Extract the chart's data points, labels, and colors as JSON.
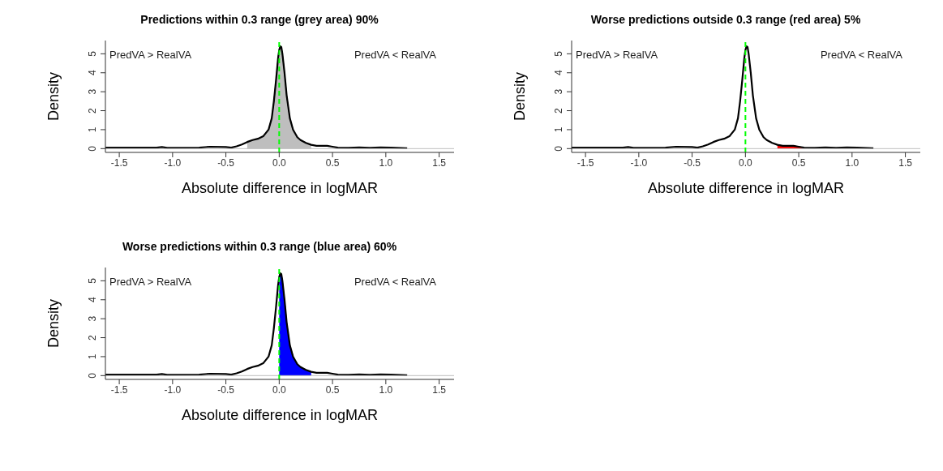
{
  "chart_data": [
    {
      "type": "line",
      "title": "Predictions within 0.3 range (grey area) 90%",
      "xlabel": "Absolute difference in logMAR",
      "ylabel": "Density",
      "xlim": [
        -1.63,
        1.64
      ],
      "ylim": [
        -0.2,
        5.7
      ],
      "xticks": [
        -1.5,
        {
          "value": -1,
          "label": "-1.0"
        },
        -0.5,
        {
          "value": 0,
          "label": "0.0"
        },
        0.5,
        {
          "value": 1,
          "label": "1.0"
        },
        1.5
      ],
      "yticks": [
        0,
        1,
        2,
        3,
        4,
        5
      ],
      "annotations": [
        "PredVA > RealVA",
        "PredVA < RealVA"
      ],
      "ref_lines": [
        {
          "axis": "y",
          "value": 0,
          "color": "#bebebe",
          "line_style": "solid"
        },
        {
          "axis": "x",
          "value": 0,
          "color": "#00ff00",
          "line_style": "dashed"
        }
      ],
      "series": [
        {
          "type": "area",
          "color": "#bebebe",
          "x": [
            -0.3,
            -0.25,
            -0.2,
            -0.15,
            -0.1,
            -0.07,
            -0.05,
            -0.03,
            -0.01,
            0,
            0.01,
            0.02,
            0.03,
            0.05,
            0.07,
            0.1,
            0.13,
            0.17,
            0.2,
            0.25,
            0.3
          ],
          "values": [
            0.35,
            0.45,
            0.52,
            0.65,
            1.0,
            1.6,
            2.5,
            3.6,
            4.8,
            5.2,
            5.4,
            5.35,
            5.0,
            4.0,
            2.8,
            1.6,
            1.0,
            0.6,
            0.45,
            0.3,
            0.2
          ]
        },
        {
          "type": "line",
          "color": "#000000",
          "x": [
            -1.63,
            -1.15,
            -1.1,
            -1.05,
            -0.75,
            -0.65,
            -0.5,
            -0.45,
            -0.4,
            -0.35,
            -0.3,
            -0.25,
            -0.2,
            -0.15,
            -0.1,
            -0.07,
            -0.05,
            -0.03,
            -0.01,
            0,
            0.01,
            0.02,
            0.03,
            0.05,
            0.07,
            0.1,
            0.13,
            0.17,
            0.2,
            0.25,
            0.3,
            0.35,
            0.45,
            0.5,
            0.55,
            0.65,
            0.75,
            0.85,
            0.95,
            1.05,
            1.2
          ],
          "values": [
            0.05,
            0.05,
            0.08,
            0.04,
            0.05,
            0.1,
            0.08,
            0.05,
            0.12,
            0.22,
            0.35,
            0.45,
            0.52,
            0.65,
            1.0,
            1.6,
            2.5,
            3.6,
            4.8,
            5.2,
            5.4,
            5.35,
            5.0,
            4.0,
            2.8,
            1.6,
            1.0,
            0.6,
            0.45,
            0.3,
            0.2,
            0.15,
            0.15,
            0.1,
            0.05,
            0.04,
            0.06,
            0.04,
            0.06,
            0.05,
            0.02
          ]
        }
      ]
    },
    {
      "type": "line",
      "title": "Worse predictions outside 0.3 range (red area) 5%",
      "xlabel": "Absolute difference in logMAR",
      "ylabel": "Density",
      "xlim": [
        -1.63,
        1.64
      ],
      "ylim": [
        -0.2,
        5.7
      ],
      "xticks": [
        -1.5,
        {
          "value": -1,
          "label": "-1.0"
        },
        -0.5,
        {
          "value": 0,
          "label": "0.0"
        },
        0.5,
        {
          "value": 1,
          "label": "1.0"
        },
        1.5
      ],
      "yticks": [
        0,
        1,
        2,
        3,
        4,
        5
      ],
      "annotations": [
        "PredVA > RealVA",
        "PredVA < RealVA"
      ],
      "ref_lines": [
        {
          "axis": "y",
          "value": 0,
          "color": "#bebebe",
          "line_style": "solid"
        },
        {
          "axis": "x",
          "value": 0,
          "color": "#00ff00",
          "line_style": "dashed"
        }
      ],
      "series": [
        {
          "type": "area",
          "color": "#ff0000",
          "x": [
            0.3,
            0.35,
            0.45,
            0.5,
            0.55
          ],
          "values": [
            0.2,
            0.15,
            0.15,
            0.1,
            0.05
          ]
        },
        {
          "type": "line",
          "color": "#000000",
          "x": [
            -1.63,
            -1.15,
            -1.1,
            -1.05,
            -0.75,
            -0.65,
            -0.5,
            -0.45,
            -0.4,
            -0.35,
            -0.3,
            -0.25,
            -0.2,
            -0.15,
            -0.1,
            -0.07,
            -0.05,
            -0.03,
            -0.01,
            0,
            0.01,
            0.02,
            0.03,
            0.05,
            0.07,
            0.1,
            0.13,
            0.17,
            0.2,
            0.25,
            0.3,
            0.35,
            0.45,
            0.5,
            0.55,
            0.65,
            0.75,
            0.85,
            0.95,
            1.05,
            1.2
          ],
          "values": [
            0.05,
            0.05,
            0.08,
            0.04,
            0.05,
            0.1,
            0.08,
            0.05,
            0.12,
            0.22,
            0.35,
            0.45,
            0.52,
            0.65,
            1.0,
            1.6,
            2.5,
            3.6,
            4.8,
            5.2,
            5.4,
            5.35,
            5.0,
            4.0,
            2.8,
            1.6,
            1.0,
            0.6,
            0.45,
            0.3,
            0.2,
            0.15,
            0.15,
            0.1,
            0.05,
            0.04,
            0.06,
            0.04,
            0.06,
            0.05,
            0.02
          ]
        }
      ]
    },
    {
      "type": "line",
      "title": "Worse predictions within 0.3 range (blue area) 60%",
      "xlabel": "Absolute difference in logMAR",
      "ylabel": "Density",
      "xlim": [
        -1.63,
        1.64
      ],
      "ylim": [
        -0.2,
        5.7
      ],
      "xticks": [
        -1.5,
        {
          "value": -1,
          "label": "-1.0"
        },
        -0.5,
        {
          "value": 0,
          "label": "0.0"
        },
        0.5,
        {
          "value": 1,
          "label": "1.0"
        },
        1.5
      ],
      "yticks": [
        0,
        1,
        2,
        3,
        4,
        5
      ],
      "annotations": [
        "PredVA > RealVA",
        "PredVA < RealVA"
      ],
      "ref_lines": [
        {
          "axis": "y",
          "value": 0,
          "color": "#bebebe",
          "line_style": "solid"
        },
        {
          "axis": "x",
          "value": 0,
          "color": "#00ff00",
          "line_style": "dashed"
        }
      ],
      "series": [
        {
          "type": "area",
          "color": "#0000ff",
          "x": [
            0,
            0.01,
            0.02,
            0.03,
            0.05,
            0.07,
            0.1,
            0.13,
            0.17,
            0.2,
            0.25,
            0.3
          ],
          "values": [
            5.2,
            5.4,
            5.35,
            5.0,
            4.0,
            2.8,
            1.6,
            1.0,
            0.6,
            0.45,
            0.3,
            0.2
          ]
        },
        {
          "type": "line",
          "color": "#000000",
          "x": [
            -1.63,
            -1.15,
            -1.1,
            -1.05,
            -0.75,
            -0.65,
            -0.5,
            -0.45,
            -0.4,
            -0.35,
            -0.3,
            -0.25,
            -0.2,
            -0.15,
            -0.1,
            -0.07,
            -0.05,
            -0.03,
            -0.01,
            0,
            0.01,
            0.02,
            0.03,
            0.05,
            0.07,
            0.1,
            0.13,
            0.17,
            0.2,
            0.25,
            0.3,
            0.35,
            0.45,
            0.5,
            0.55,
            0.65,
            0.75,
            0.85,
            0.95,
            1.05,
            1.2
          ],
          "values": [
            0.05,
            0.05,
            0.08,
            0.04,
            0.05,
            0.1,
            0.08,
            0.05,
            0.12,
            0.22,
            0.35,
            0.45,
            0.52,
            0.65,
            1.0,
            1.6,
            2.5,
            3.6,
            4.8,
            5.2,
            5.4,
            5.35,
            5.0,
            4.0,
            2.8,
            1.6,
            1.0,
            0.6,
            0.45,
            0.3,
            0.2,
            0.15,
            0.15,
            0.1,
            0.05,
            0.04,
            0.06,
            0.04,
            0.06,
            0.05,
            0.02
          ]
        }
      ]
    }
  ]
}
